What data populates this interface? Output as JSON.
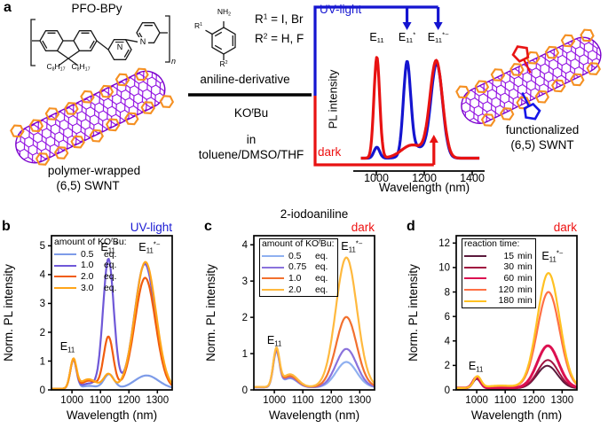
{
  "colors": {
    "uv_blue": "#1a1ad2",
    "dark_red": "#ee1111",
    "tube_purple": "#8a00e0",
    "tube_outline": "#7a00cc",
    "wrap_orange": "#f59022",
    "ring_red": "#e81414",
    "ring_blue": "#1515e8",
    "bond_black": "#1a1a1a"
  },
  "panel_a": {
    "letter": "a",
    "polymer_title": "PFO-BPy",
    "alkyl_left": "C~8~H~17~",
    "alkyl_right": "C~8~H~17~",
    "repeat_sub": "n",
    "pyridine_n1": "N",
    "pyridine_n2": "N",
    "amine_label": "NH~2~",
    "r1_label": "R^1^",
    "r2_label": "R^2^",
    "r1_line": "R^1^ = I, Br",
    "r2_line": "R^2^ = H, F",
    "aniline_caption": "aniline-derivative",
    "reagent": "KO^t^Bu",
    "in_word": "in",
    "solvent": "toluene/DMSO/THF",
    "left_tube_caption_1": "polymer-wrapped",
    "left_tube_caption_2": "(6,5) SWNT",
    "right_tube_caption_1": "functionalized",
    "right_tube_caption_2": "(6,5) SWNT"
  },
  "chart_data": [
    {
      "id": "inset-a",
      "type": "line",
      "uv_label": {
        "text": "UV-light",
        "color": "#1a1ad2"
      },
      "dark_label": {
        "text": "dark",
        "color": "#ee1111"
      },
      "ylabel": "PL intensity",
      "xlabel": "Wavelength (nm)",
      "xticks": [
        1000,
        1200,
        1400
      ],
      "xlim": [
        935,
        1430
      ],
      "peak_labels": [
        {
          "text": "E~11~",
          "x": 1002
        },
        {
          "text": "E~11~^*^",
          "x": 1128
        },
        {
          "text": "E~11~^*−^",
          "x": 1258
        }
      ],
      "uv_arrows_x": [
        1128,
        1258
      ],
      "dark_arrow_x": 1240,
      "series": [
        {
          "name": "UV-light",
          "color": "#1414d0",
          "width": 3.2,
          "baseline": 0.02,
          "peaks": [
            {
              "c": 1002,
              "s": 12,
              "a": 0.1
            },
            {
              "c": 1128,
              "s": 15,
              "a": 0.82
            },
            {
              "c": 1165,
              "s": 38,
              "a": 0.1
            },
            {
              "c": 1252,
              "s": 24,
              "a": 0.86
            }
          ]
        },
        {
          "name": "dark",
          "color": "#e81212",
          "width": 3.2,
          "baseline": 0.02,
          "peaks": [
            {
              "c": 1002,
              "s": 12,
              "a": 0.92
            },
            {
              "c": 1150,
              "s": 45,
              "a": 0.12
            },
            {
              "c": 1250,
              "s": 26,
              "a": 0.88
            }
          ]
        }
      ]
    },
    {
      "id": "panel-b",
      "type": "line",
      "letter": "b",
      "title": "",
      "mode_label": {
        "text": "UV-light",
        "color": "#1a1ad2"
      },
      "xlabel": "Wavelength (nm)",
      "ylabel": "Norm. PL intensity",
      "xlim": [
        928,
        1352
      ],
      "ylim": [
        0,
        5.35
      ],
      "xticks": [
        1000,
        1100,
        1200,
        1300
      ],
      "yticks": [
        0,
        1,
        2,
        3,
        4,
        5
      ],
      "legend": {
        "title": "amount of KO^t^Bu:",
        "border": false,
        "val_width": 22,
        "val_align": "left"
      },
      "annotations": [
        {
          "text": "E~11~",
          "x": 984,
          "y": 1.52
        },
        {
          "text": "E~11~^*^",
          "x": 1131,
          "y": 4.95
        },
        {
          "text": "E~11~^*−^",
          "x": 1272,
          "y": 4.95
        }
      ],
      "series": [
        {
          "label_value": "0.5",
          "label_unit": "eq.",
          "color": "#7d9be8",
          "width": 2.2,
          "baseline": 0.04,
          "peaks": [
            {
              "c": 1005,
              "s": 11,
              "a": 1.0
            },
            {
              "c": 1060,
              "s": 26,
              "a": 0.1
            },
            {
              "c": 1130,
              "s": 18,
              "a": 0.5
            },
            {
              "c": 1262,
              "s": 42,
              "a": 0.46
            }
          ]
        },
        {
          "label_value": "1.0",
          "label_unit": "eq.",
          "color": "#6f58d8",
          "width": 2.2,
          "baseline": 0.04,
          "peaks": [
            {
              "c": 1005,
              "s": 11,
              "a": 1.0
            },
            {
              "c": 1060,
              "s": 26,
              "a": 0.18
            },
            {
              "c": 1128,
              "s": 19,
              "a": 4.5
            },
            {
              "c": 1256,
              "s": 36,
              "a": 4.33
            }
          ]
        },
        {
          "label_value": "2.0",
          "label_unit": "eq.",
          "color": "#f15c0e",
          "width": 2.2,
          "baseline": 0.04,
          "peaks": [
            {
              "c": 1005,
              "s": 11,
              "a": 1.0
            },
            {
              "c": 1060,
              "s": 26,
              "a": 0.28
            },
            {
              "c": 1128,
              "s": 17,
              "a": 1.8
            },
            {
              "c": 1257,
              "s": 36,
              "a": 3.85
            }
          ]
        },
        {
          "label_value": "3.0",
          "label_unit": "eq.",
          "color": "#ffa519",
          "width": 2.2,
          "baseline": 0.04,
          "peaks": [
            {
              "c": 1005,
              "s": 11,
              "a": 1.0
            },
            {
              "c": 1058,
              "s": 28,
              "a": 0.33
            },
            {
              "c": 1128,
              "s": 17,
              "a": 0.5
            },
            {
              "c": 1258,
              "s": 37,
              "a": 4.4
            }
          ]
        }
      ]
    },
    {
      "id": "panel-c",
      "type": "line",
      "letter": "c",
      "title": "2-iodoaniline",
      "mode_label": {
        "text": "dark",
        "color": "#ee1111"
      },
      "xlabel": "Wavelength (nm)",
      "ylabel": "Norm. PL intensity",
      "xlim": [
        928,
        1352
      ],
      "ylim": [
        0,
        4.25
      ],
      "xticks": [
        1000,
        1100,
        1200,
        1300
      ],
      "yticks": [
        0,
        1,
        2,
        3,
        4
      ],
      "legend": {
        "title": "amount of KO^t^Bu:",
        "border": true,
        "val_width": 26,
        "val_align": "left"
      },
      "annotations": [
        {
          "text": "E~11~",
          "x": 1000,
          "y": 1.38
        },
        {
          "text": "E~11~^*−^",
          "x": 1272,
          "y": 3.95
        }
      ],
      "series": [
        {
          "label_value": "0.5",
          "label_unit": "eq.",
          "color": "#8fb0f0",
          "width": 2.2,
          "baseline": 0.07,
          "peaks": [
            {
              "c": 1007,
              "s": 11,
              "a": 0.95
            },
            {
              "c": 1055,
              "s": 26,
              "a": 0.25
            },
            {
              "c": 1253,
              "s": 36,
              "a": 0.7
            }
          ]
        },
        {
          "label_value": "0.75",
          "label_unit": "eq.",
          "color": "#8a72dc",
          "width": 2.2,
          "baseline": 0.07,
          "peaks": [
            {
              "c": 1007,
              "s": 11,
              "a": 0.98
            },
            {
              "c": 1055,
              "s": 26,
              "a": 0.27
            },
            {
              "c": 1253,
              "s": 36,
              "a": 1.06
            }
          ]
        },
        {
          "label_value": "1.0",
          "label_unit": "eq.",
          "color": "#f2702e",
          "width": 2.2,
          "baseline": 0.08,
          "peaks": [
            {
              "c": 1007,
              "s": 11,
              "a": 1.0
            },
            {
              "c": 1055,
              "s": 26,
              "a": 0.3
            },
            {
              "c": 1253,
              "s": 36,
              "a": 1.93
            }
          ]
        },
        {
          "label_value": "2.0",
          "label_unit": "eq.",
          "color": "#ffb93e",
          "width": 2.2,
          "baseline": 0.08,
          "peaks": [
            {
              "c": 1007,
              "s": 11,
              "a": 1.02
            },
            {
              "c": 1055,
              "s": 27,
              "a": 0.35
            },
            {
              "c": 1253,
              "s": 37,
              "a": 3.57
            }
          ]
        }
      ]
    },
    {
      "id": "panel-d",
      "type": "line",
      "letter": "d",
      "title": "",
      "mode_label": {
        "text": "dark",
        "color": "#ee1111"
      },
      "xlabel": "Wavelength (nm)",
      "ylabel": "Norm. PL intensity",
      "xlim": [
        928,
        1352
      ],
      "ylim": [
        0,
        12.6
      ],
      "xticks": [
        1000,
        1100,
        1200,
        1300
      ],
      "yticks": [
        0,
        2,
        4,
        6,
        8,
        10,
        12
      ],
      "legend": {
        "title": "reaction time:",
        "border": true,
        "val_width": 26,
        "val_align": "right"
      },
      "annotations": [
        {
          "text": "E~11~",
          "x": 997,
          "y": 1.95
        },
        {
          "text": "E~11~^*−^",
          "x": 1266,
          "y": 10.9
        }
      ],
      "series": [
        {
          "label_value": "15",
          "label_unit": "min",
          "color": "#5b1a3c",
          "width": 2.0,
          "baseline": 0.12,
          "peaks": [
            {
              "c": 1000,
              "s": 13,
              "a": 0.78
            },
            {
              "c": 1248,
              "s": 36,
              "a": 1.85
            }
          ]
        },
        {
          "label_value": "30",
          "label_unit": "min",
          "color": "#a01240",
          "width": 2.0,
          "baseline": 0.14,
          "peaks": [
            {
              "c": 1000,
              "s": 13,
              "a": 0.82
            },
            {
              "c": 1250,
              "s": 36,
              "a": 2.3
            }
          ]
        },
        {
          "label_value": "60",
          "label_unit": "min",
          "color": "#dc1050",
          "width": 3.0,
          "baseline": 0.16,
          "peaks": [
            {
              "c": 1000,
              "s": 13,
              "a": 0.88
            },
            {
              "c": 1250,
              "s": 37,
              "a": 3.45
            }
          ]
        },
        {
          "label_value": "120",
          "label_unit": "min",
          "color": "#ff7044",
          "width": 2.2,
          "baseline": 0.15,
          "peaks": [
            {
              "c": 1002,
              "s": 13,
              "a": 0.92
            },
            {
              "c": 1085,
              "s": 50,
              "a": 0.18
            },
            {
              "c": 1252,
              "s": 39,
              "a": 7.85
            }
          ]
        },
        {
          "label_value": "180",
          "label_unit": "min",
          "color": "#ffc122",
          "width": 2.2,
          "baseline": 0.15,
          "peaks": [
            {
              "c": 1002,
              "s": 13,
              "a": 0.92
            },
            {
              "c": 1085,
              "s": 50,
              "a": 0.2
            },
            {
              "c": 1252,
              "s": 39,
              "a": 9.4
            }
          ]
        }
      ]
    }
  ]
}
